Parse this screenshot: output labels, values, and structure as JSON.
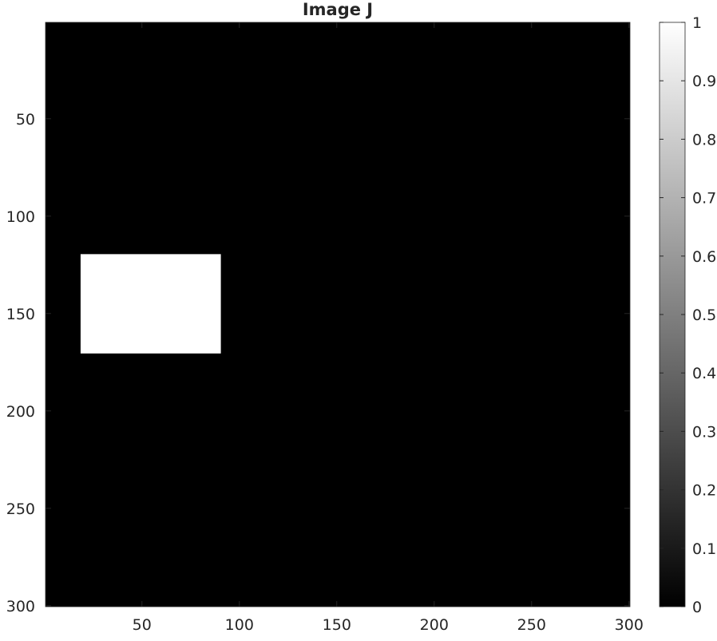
{
  "chart_data": {
    "type": "heatmap",
    "title": "Image J",
    "xlabel": "",
    "ylabel": "",
    "xlim": [
      0.5,
      300.5
    ],
    "ylim": [
      0.5,
      300.5
    ],
    "y_reversed": true,
    "x_ticks": [
      50,
      100,
      150,
      200,
      250,
      300
    ],
    "y_ticks": [
      50,
      100,
      150,
      200,
      250,
      300
    ],
    "background_value": 0,
    "regions": [
      {
        "x_range": [
          19,
          90
        ],
        "y_range": [
          120,
          170
        ],
        "value": 1
      }
    ],
    "colormap": "gray",
    "colormap_low": "#000000",
    "colormap_high": "#ffffff",
    "colorbar": {
      "range": [
        0,
        1
      ],
      "ticks": [
        "0",
        "0.1",
        "0.2",
        "0.3",
        "0.4",
        "0.5",
        "0.6",
        "0.7",
        "0.8",
        "0.9",
        "1"
      ]
    },
    "grid": false,
    "legend": "none"
  }
}
